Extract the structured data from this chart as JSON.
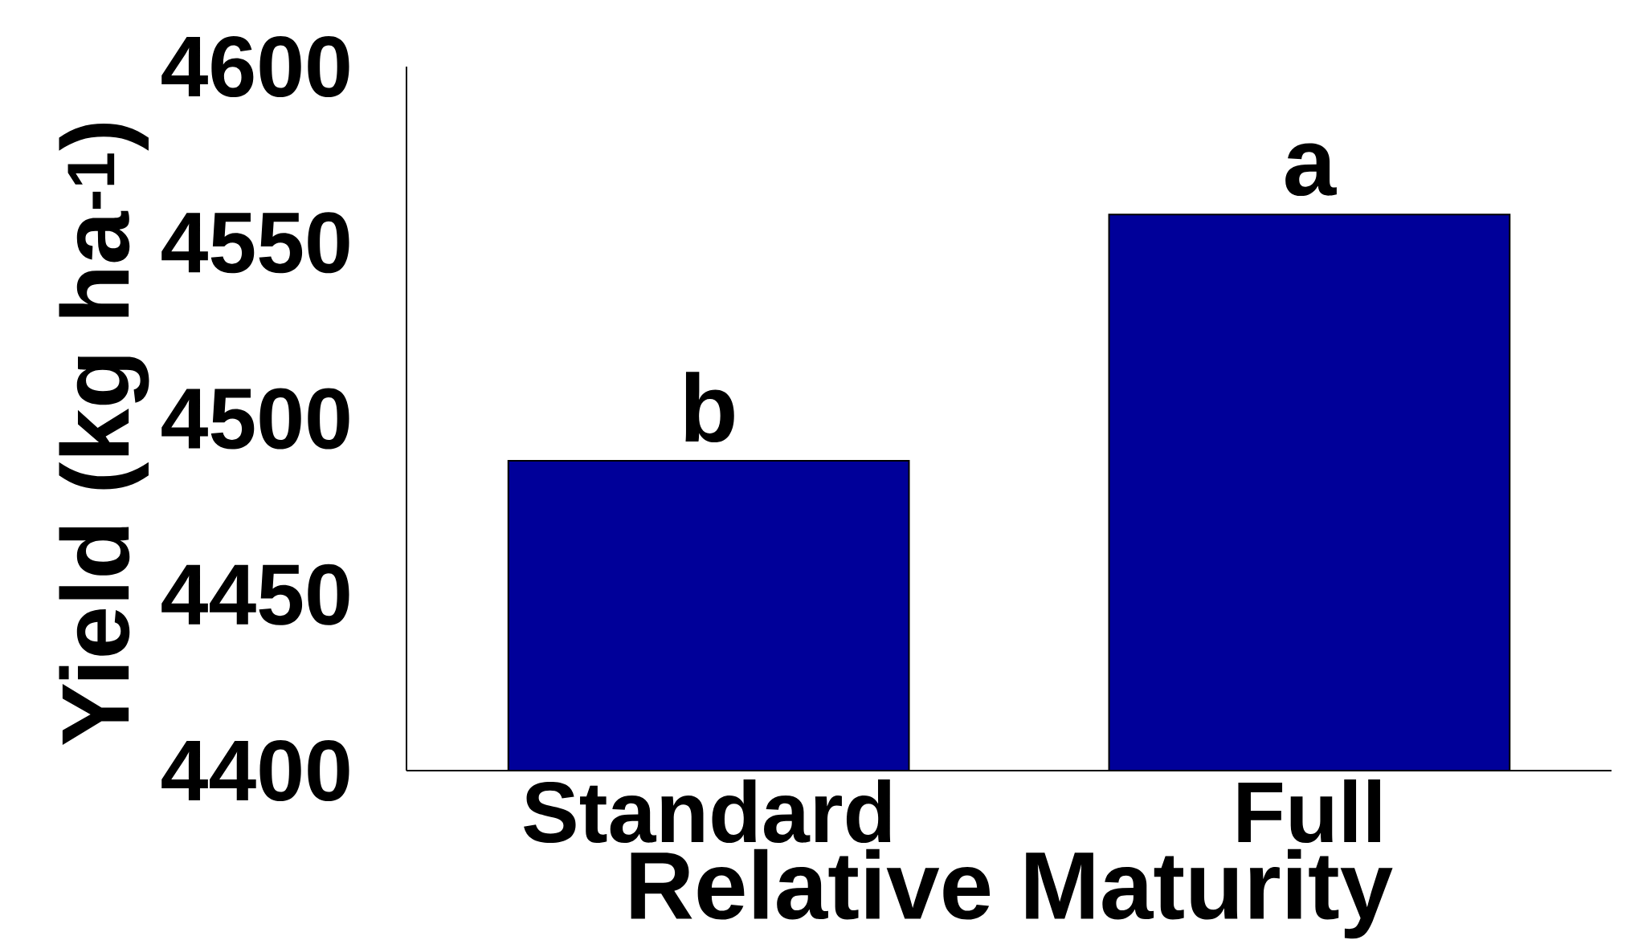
{
  "chart_data": {
    "type": "bar",
    "categories": [
      "Standard",
      "Full"
    ],
    "values": [
      4488,
      4558
    ],
    "color": "#000099",
    "xlabel": "Relative Maturity",
    "ylabel": "Yield (kg ha$^{-1}$)",
    "ylim": [
      4400,
      4600
    ],
    "yticks": [
      4400,
      4450,
      4500,
      4550,
      4600
    ],
    "annotations": [
      {
        "text": "b",
        "x": "Standard",
        "y": 4488
      },
      {
        "text": "a",
        "x": "Full",
        "y": 4558
      }
    ]
  }
}
